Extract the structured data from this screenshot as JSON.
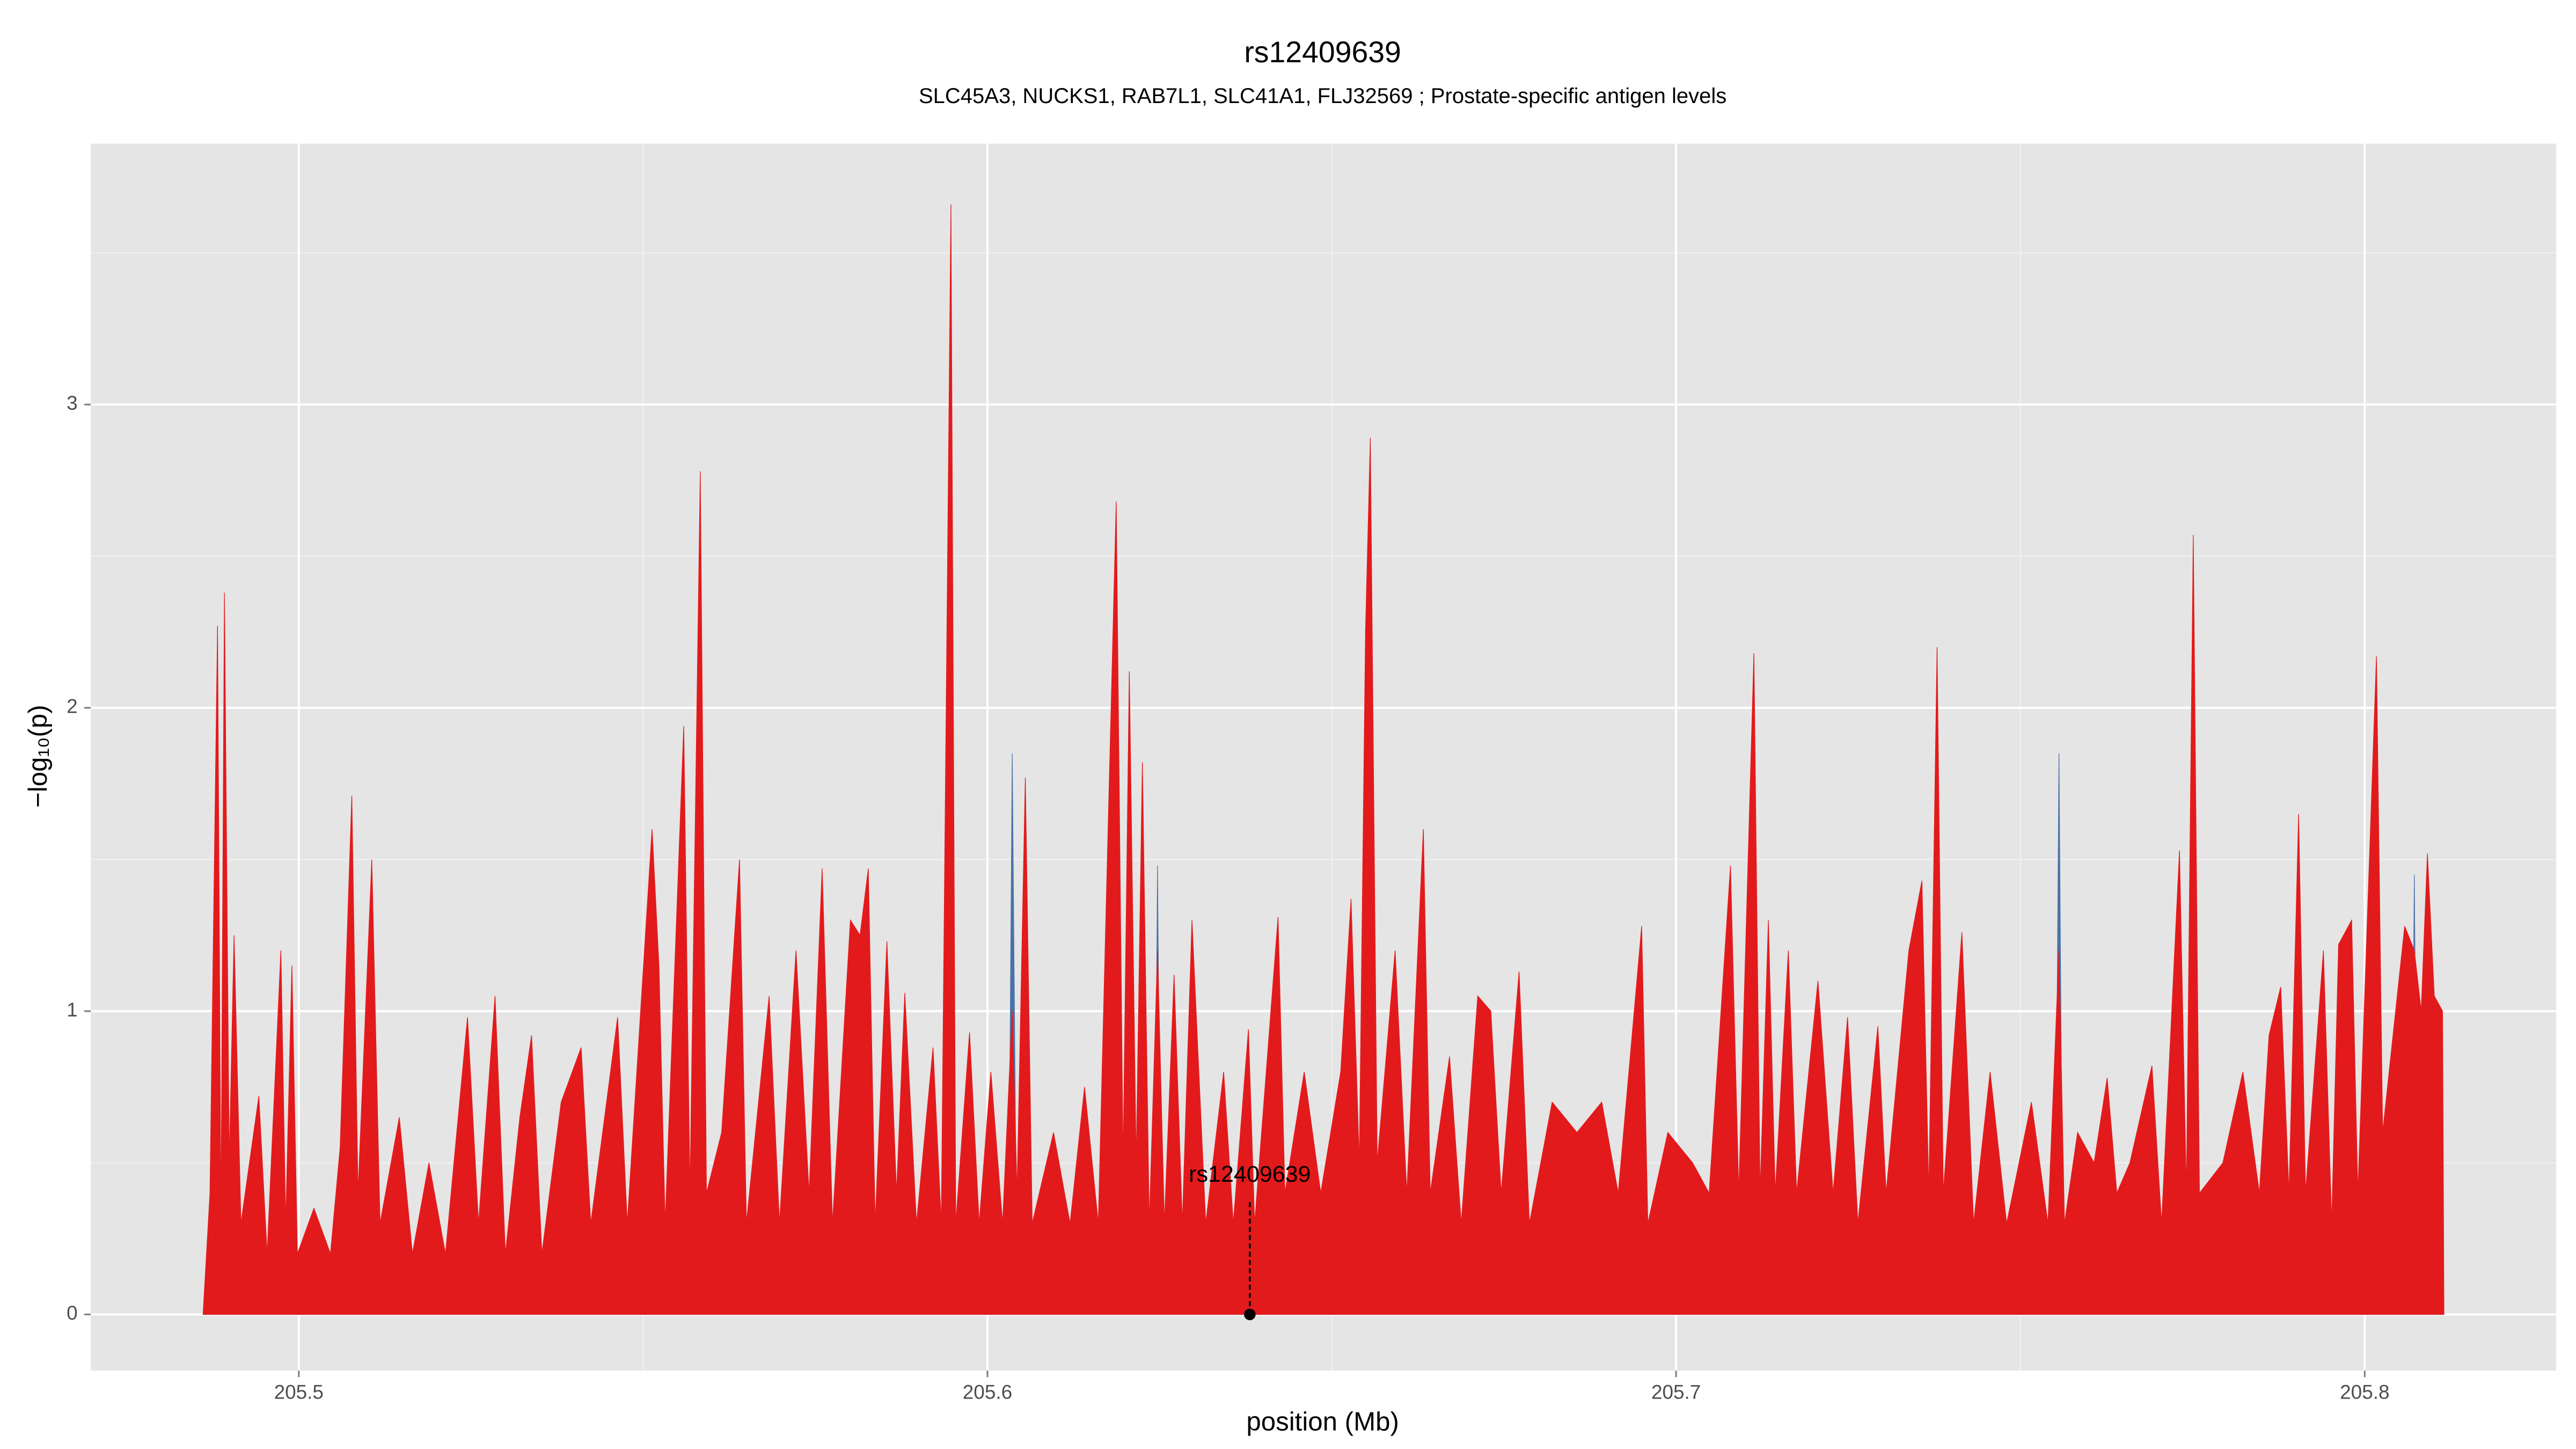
{
  "chart_data": {
    "type": "area",
    "title": "rs12409639",
    "subtitle": "SLC45A3, NUCKS1, RAB7L1, SLC41A1, FLJ32569 ; Prostate-specific antigen levels",
    "xlabel": "position (Mb)",
    "ylabel": "−log₁₀(p)",
    "xlim": [
      205.4698,
      205.8278
    ],
    "ylim": [
      -0.185,
      3.86
    ],
    "xticks": [
      205.5,
      205.6,
      205.7,
      205.8
    ],
    "yticks": [
      0,
      1,
      2,
      3
    ],
    "minor_xticks": [
      205.55,
      205.65,
      205.75
    ],
    "minor_yticks": [
      0.5,
      1.5,
      2.5,
      3.5
    ],
    "grid": true,
    "background": "#e5e5e5",
    "series": [
      {
        "color": "#4a72a8",
        "x": [
          205.4861,
          205.603,
          205.6036,
          205.6043,
          205.6242,
          205.6247,
          205.6252,
          205.755,
          205.7556,
          205.7562,
          205.8067,
          205.8072,
          205.8077,
          205.8115
        ],
        "values": [
          0,
          0,
          1.85,
          0,
          0,
          1.48,
          0,
          0,
          1.85,
          0,
          0,
          1.45,
          0,
          0
        ]
      },
      {
        "color": "#e31a1c",
        "x": [
          205.4861,
          205.4871,
          205.4882,
          205.4887,
          205.4892,
          205.4899,
          205.4906,
          205.4916,
          205.4942,
          205.4954,
          205.4974,
          205.4981,
          205.499,
          205.4998,
          205.5022,
          205.5046,
          205.506,
          205.5077,
          205.5086,
          205.5106,
          205.5118,
          205.5146,
          205.5165,
          205.5189,
          205.5213,
          205.5245,
          205.5261,
          205.5285,
          205.53,
          205.5321,
          205.5338,
          205.5353,
          205.5381,
          205.541,
          205.5424,
          205.5463,
          205.5477,
          205.5513,
          205.5523,
          205.5532,
          205.5559,
          205.5568,
          205.5583,
          205.5592,
          205.5614,
          205.564,
          205.565,
          205.5683,
          205.5698,
          205.5722,
          205.5741,
          205.576,
          205.5775,
          205.5801,
          205.5815,
          205.5827,
          205.5837,
          205.5854,
          205.5868,
          205.588,
          205.5897,
          205.5921,
          205.5933,
          205.5947,
          205.5954,
          205.5974,
          205.5988,
          205.6005,
          205.6022,
          205.6036,
          205.6043,
          205.6055,
          205.6065,
          205.6096,
          205.612,
          205.6141,
          205.6161,
          205.6187,
          205.6197,
          205.6206,
          205.6216,
          205.6225,
          205.6235,
          205.6247,
          205.6257,
          205.6271,
          205.6283,
          205.6297,
          205.6317,
          205.6343,
          205.6357,
          205.6379,
          205.6388,
          205.6422,
          205.6432,
          205.646,
          205.6484,
          205.6513,
          205.6528,
          205.654,
          205.6549,
          205.6556,
          205.6566,
          205.6592,
          205.6609,
          205.6633,
          205.6643,
          205.6671,
          205.6688,
          205.6712,
          205.6731,
          205.6746,
          205.6772,
          205.6787,
          205.682,
          205.6856,
          205.6892,
          205.6916,
          205.695,
          205.6959,
          205.6988,
          205.7024,
          205.7048,
          205.7079,
          205.7091,
          205.7113,
          205.7122,
          205.7134,
          205.7144,
          205.7163,
          205.7175,
          205.7206,
          205.7228,
          205.7249,
          205.7264,
          205.7293,
          205.7305,
          205.7338,
          205.7357,
          205.7367,
          205.7379,
          205.7388,
          205.7415,
          205.7432,
          205.7456,
          205.748,
          205.7516,
          205.754,
          205.7556,
          205.7564,
          205.7583,
          205.7607,
          205.7626,
          205.764,
          205.7659,
          205.7691,
          205.7705,
          205.7731,
          205.7741,
          205.7751,
          205.776,
          205.7794,
          205.7823,
          205.7847,
          205.7861,
          205.7878,
          205.789,
          205.7904,
          205.7914,
          205.794,
          205.7952,
          205.7962,
          205.7981,
          205.799,
          205.8017,
          205.8026,
          205.8058,
          205.8072,
          205.8082,
          205.8091,
          205.8101,
          205.8113,
          205.8115
        ],
        "values": [
          0,
          0.4,
          2.27,
          0.3,
          2.38,
          0.5,
          1.25,
          0.3,
          0.72,
          0.2,
          1.2,
          0.3,
          1.15,
          0.2,
          0.35,
          0.2,
          0.55,
          1.71,
          0.4,
          1.5,
          0.3,
          0.65,
          0.2,
          0.5,
          0.2,
          0.98,
          0.3,
          1.05,
          0.2,
          0.65,
          0.92,
          0.2,
          0.7,
          0.88,
          0.3,
          0.98,
          0.3,
          1.6,
          1.15,
          0.3,
          1.94,
          0.4,
          2.78,
          0.4,
          0.6,
          1.5,
          0.3,
          1.05,
          0.3,
          1.2,
          0.4,
          1.47,
          0.3,
          1.3,
          1.25,
          1.47,
          0.3,
          1.23,
          0.4,
          1.06,
          0.3,
          0.88,
          0.3,
          3.66,
          0.3,
          0.93,
          0.3,
          0.8,
          0.3,
          1.0,
          0.4,
          1.77,
          0.3,
          0.6,
          0.3,
          0.75,
          0.3,
          2.68,
          0.5,
          2.12,
          0.5,
          1.82,
          0.3,
          1.2,
          0.3,
          1.12,
          0.3,
          1.3,
          0.3,
          0.8,
          0.3,
          0.94,
          0.3,
          1.31,
          0.4,
          0.8,
          0.4,
          0.8,
          1.37,
          0.5,
          2.25,
          2.89,
          0.5,
          1.2,
          0.4,
          1.6,
          0.4,
          0.85,
          0.3,
          1.05,
          1.0,
          0.4,
          1.13,
          0.3,
          0.7,
          0.6,
          0.7,
          0.4,
          1.28,
          0.3,
          0.6,
          0.5,
          0.4,
          1.48,
          0.4,
          2.18,
          0.4,
          1.3,
          0.4,
          1.2,
          0.4,
          1.1,
          0.4,
          0.98,
          0.3,
          0.95,
          0.4,
          1.2,
          1.43,
          0.4,
          2.2,
          0.4,
          1.26,
          0.3,
          0.8,
          0.3,
          0.7,
          0.3,
          1.2,
          0.3,
          0.6,
          0.5,
          0.78,
          0.4,
          0.5,
          0.82,
          0.3,
          1.53,
          0.4,
          2.57,
          0.4,
          0.5,
          0.8,
          0.4,
          0.92,
          1.08,
          0.4,
          1.65,
          0.4,
          1.2,
          0.3,
          1.22,
          1.3,
          0.4,
          2.17,
          0.6,
          1.28,
          1.2,
          1.0,
          1.52,
          1.05,
          1.0,
          0
        ]
      }
    ],
    "annotation": {
      "text": "rs12409639",
      "x": 205.6381,
      "y": 0
    }
  }
}
